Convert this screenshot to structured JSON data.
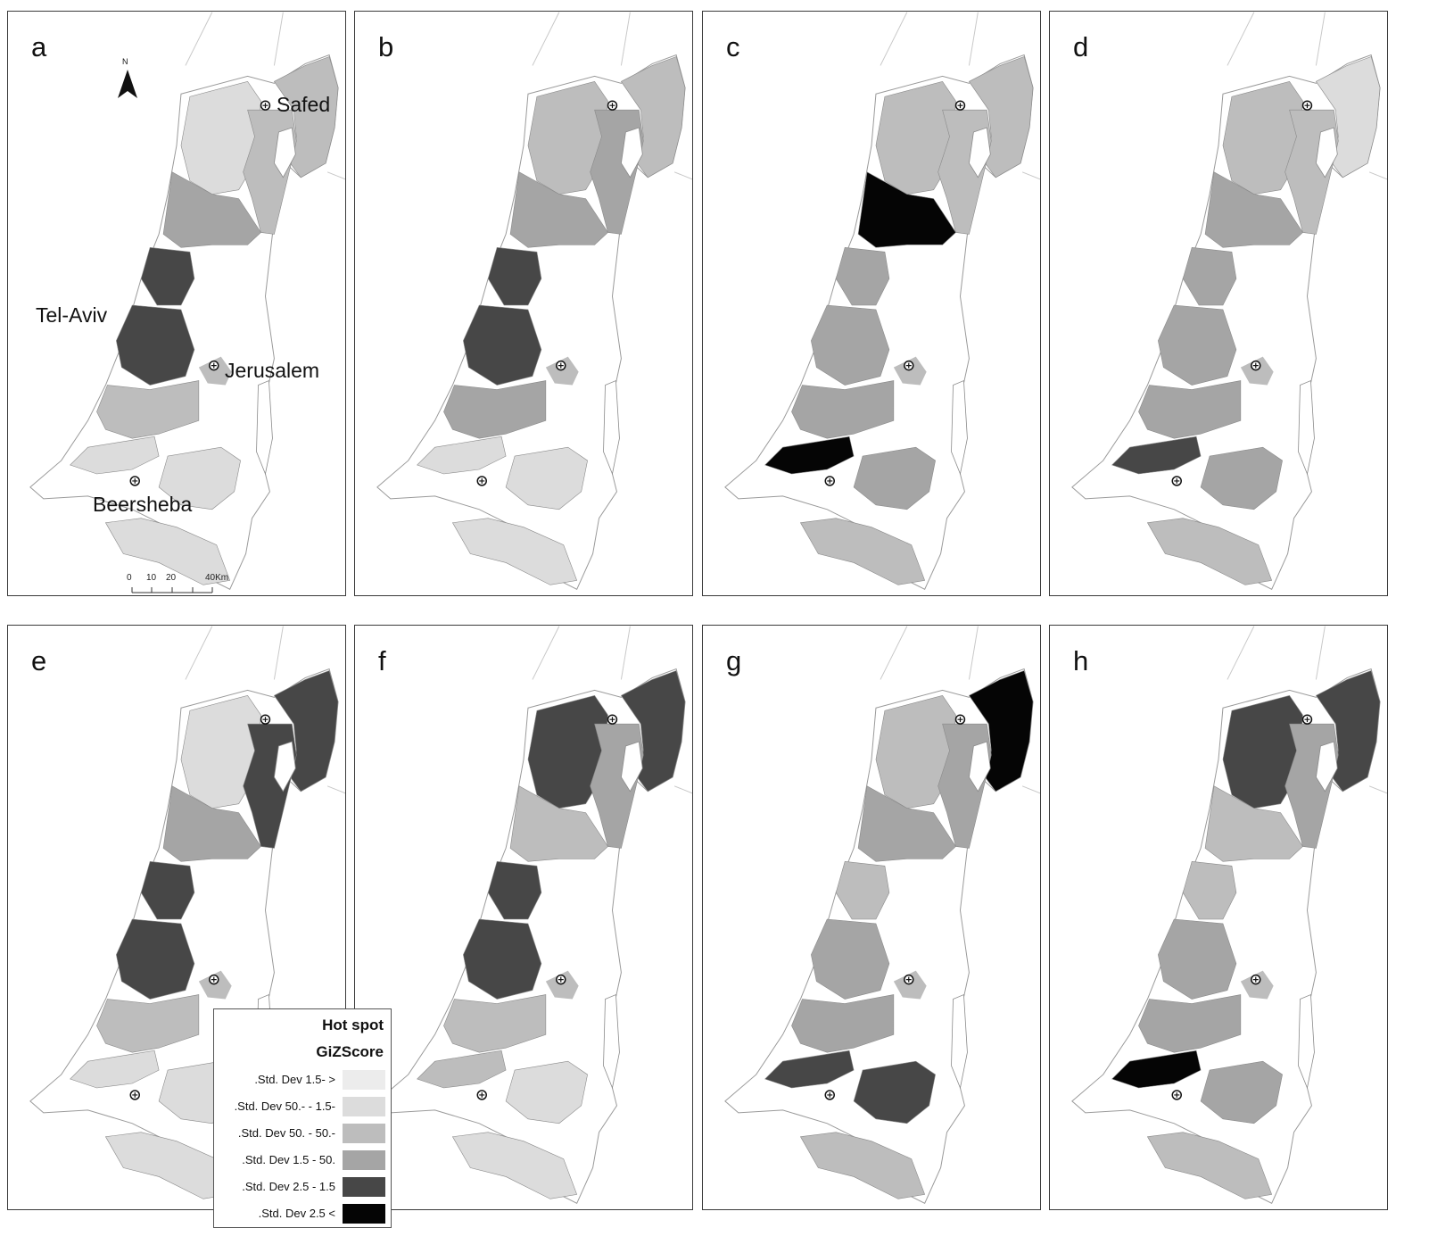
{
  "panels": [
    {
      "letter": "a",
      "pattern": [
        "l",
        "m",
        "m",
        "a",
        "d",
        "d",
        "m",
        "l",
        "l",
        "l"
      ]
    },
    {
      "letter": "b",
      "pattern": [
        "m",
        "m",
        "a",
        "a",
        "d",
        "d",
        "a",
        "l",
        "l",
        "l"
      ]
    },
    {
      "letter": "c",
      "pattern": [
        "m",
        "m",
        "m",
        "k",
        "a",
        "a",
        "a",
        "k",
        "a",
        "m"
      ]
    },
    {
      "letter": "d",
      "pattern": [
        "m",
        "l",
        "m",
        "a",
        "a",
        "a",
        "a",
        "d",
        "a",
        "m"
      ]
    },
    {
      "letter": "e",
      "pattern": [
        "l",
        "d",
        "d",
        "a",
        "d",
        "d",
        "m",
        "l",
        "l",
        "l"
      ]
    },
    {
      "letter": "f",
      "pattern": [
        "d",
        "d",
        "a",
        "m",
        "d",
        "d",
        "m",
        "m",
        "l",
        "l"
      ]
    },
    {
      "letter": "g",
      "pattern": [
        "m",
        "k",
        "a",
        "a",
        "m",
        "a",
        "a",
        "d",
        "d",
        "m"
      ]
    },
    {
      "letter": "h",
      "pattern": [
        "d",
        "d",
        "a",
        "m",
        "m",
        "a",
        "a",
        "k",
        "a",
        "m"
      ]
    }
  ],
  "cities": {
    "safed": "Safed",
    "tel_aviv": "Tel-Aviv",
    "jerusalem": "Jerusalem",
    "beersheba": "Beersheba"
  },
  "north_arrow": {
    "letter": "N"
  },
  "scale_bar": {
    "labels": [
      "0",
      "10",
      "20",
      "40Km"
    ]
  },
  "legend": {
    "title": "Hot spot",
    "subtitle": "GiZScore",
    "items": [
      {
        "label": ".Std. Dev 1.5- >",
        "color": "#ececec"
      },
      {
        "label": ".Std. Dev 50.- - 1.5-",
        "color": "#dcdcdc"
      },
      {
        "label": ".Std. Dev 50. - 50.-",
        "color": "#bdbdbd"
      },
      {
        "label": ".Std. Dev 1.5 - 50.",
        "color": "#a5a5a5"
      },
      {
        "label": ".Std. Dev 2.5 - 1.5",
        "color": "#474747"
      },
      {
        "label": ".Std. Dev 2.5 <",
        "color": "#050505"
      }
    ]
  },
  "colors": {
    "very_light": "#ececec",
    "light": "#dcdcdc",
    "medium": "#bdbdbd",
    "medium_dark": "#a5a5a5",
    "dark": "#474747",
    "black": "#050505",
    "outline": "#9a9a9a",
    "frame": "#3a3a3a"
  }
}
